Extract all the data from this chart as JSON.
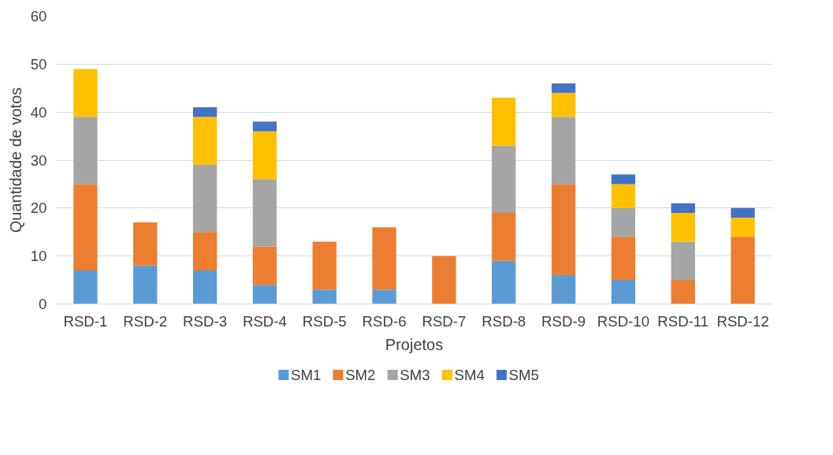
{
  "chart_data": {
    "type": "bar",
    "stacked": true,
    "xlabel": "Projetos",
    "ylabel": "Quantidade de votos",
    "categories": [
      "RSD-1",
      "RSD-2",
      "RSD-3",
      "RSD-4",
      "RSD-5",
      "RSD-6",
      "RSD-7",
      "RSD-8",
      "RSD-9",
      "RSD-10",
      "RSD-11",
      "RSD-12"
    ],
    "series": [
      {
        "name": "SM1",
        "color": "#5b9bd5",
        "values": [
          7,
          8,
          7,
          4,
          3,
          3,
          null,
          9,
          6,
          5,
          null,
          null
        ]
      },
      {
        "name": "SM2",
        "color": "#ed7d31",
        "values": [
          18,
          9,
          8,
          8,
          10,
          13,
          10,
          10,
          19,
          9,
          5,
          14
        ]
      },
      {
        "name": "SM3",
        "color": "#a5a5a5",
        "values": [
          14,
          null,
          14,
          14,
          null,
          null,
          null,
          14,
          14,
          6,
          8,
          null
        ]
      },
      {
        "name": "SM4",
        "color": "#ffc000",
        "values": [
          10,
          null,
          10,
          10,
          null,
          null,
          null,
          10,
          5,
          5,
          6,
          4
        ]
      },
      {
        "name": "SM5",
        "color": "#4472c4",
        "values": [
          null,
          null,
          2,
          2,
          null,
          null,
          null,
          null,
          2,
          2,
          2,
          2
        ]
      }
    ],
    "ylim": [
      0,
      60
    ],
    "yticks": [
      0,
      10,
      20,
      30,
      40,
      50,
      60
    ],
    "grid": "y",
    "legend": "bottom"
  }
}
